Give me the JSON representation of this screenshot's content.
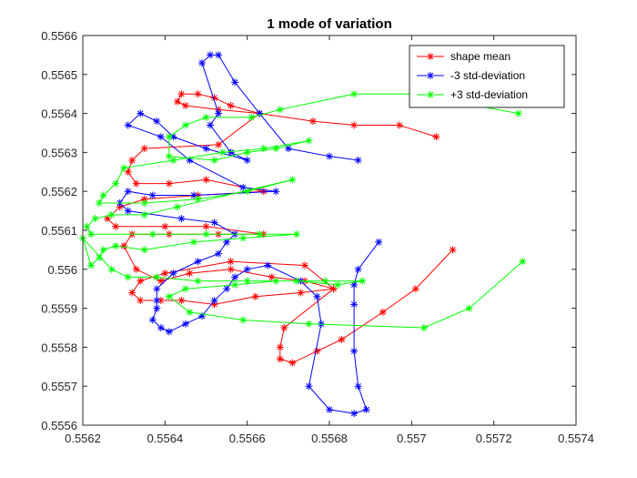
{
  "chart_data": {
    "type": "line",
    "title": "1 mode of variation",
    "xlabel": "",
    "ylabel": "",
    "xlim": [
      0.5562,
      0.5574
    ],
    "ylim": [
      0.5556,
      0.5566
    ],
    "xticks": [
      "0.5562",
      "0.5564",
      "0.5566",
      "0.5568",
      "0.557",
      "0.5572",
      "0.5574"
    ],
    "yticks": [
      "0.5556",
      "0.5557",
      "0.5558",
      "0.5559",
      "0.556",
      "0.5561",
      "0.5562",
      "0.5563",
      "0.5564",
      "0.5565",
      "0.5566"
    ],
    "grid": false,
    "legend": "top-right",
    "marker": "*",
    "series": [
      {
        "name": "shape mean",
        "color": "#ff0000",
        "points": [
          [
            0.55706,
            0.55634
          ],
          [
            0.55697,
            0.55637
          ],
          [
            0.55686,
            0.55637
          ],
          [
            0.55676,
            0.55638
          ],
          [
            0.55663,
            0.5564
          ],
          [
            0.55656,
            0.55642
          ],
          [
            0.55652,
            0.55644
          ],
          [
            0.55648,
            0.55645
          ],
          [
            0.55644,
            0.55645
          ],
          [
            0.55643,
            0.55643
          ],
          [
            0.55645,
            0.55642
          ],
          [
            0.55653,
            0.55641
          ],
          [
            0.55663,
            0.5564
          ],
          [
            0.55653,
            0.55632
          ],
          [
            0.55635,
            0.55631
          ],
          [
            0.55632,
            0.55628
          ],
          [
            0.55631,
            0.55625
          ],
          [
            0.55633,
            0.55622
          ],
          [
            0.55641,
            0.55622
          ],
          [
            0.5565,
            0.55623
          ],
          [
            0.55664,
            0.5562
          ],
          [
            0.55648,
            0.55619
          ],
          [
            0.55635,
            0.55618
          ],
          [
            0.55629,
            0.55616
          ],
          [
            0.55626,
            0.55613
          ],
          [
            0.55628,
            0.55611
          ],
          [
            0.5564,
            0.55611
          ],
          [
            0.5565,
            0.55611
          ],
          [
            0.55664,
            0.55609
          ],
          [
            0.55653,
            0.55609
          ],
          [
            0.55641,
            0.55609
          ],
          [
            0.55632,
            0.55609
          ],
          [
            0.5563,
            0.55606
          ],
          [
            0.55633,
            0.556
          ],
          [
            0.55639,
            0.55597
          ],
          [
            0.55646,
            0.55599
          ],
          [
            0.55656,
            0.556
          ],
          [
            0.55666,
            0.55598
          ],
          [
            0.55674,
            0.55597
          ],
          [
            0.55681,
            0.55595
          ],
          [
            0.55673,
            0.55594
          ],
          [
            0.55662,
            0.55593
          ],
          [
            0.55652,
            0.55591
          ],
          [
            0.55644,
            0.55592
          ],
          [
            0.55639,
            0.55592
          ],
          [
            0.55634,
            0.55592
          ],
          [
            0.55632,
            0.55594
          ],
          [
            0.55634,
            0.55597
          ],
          [
            0.5564,
            0.55599
          ],
          [
            0.55656,
            0.55602
          ],
          [
            0.55674,
            0.55601
          ],
          [
            0.55681,
            0.55595
          ],
          [
            0.55669,
            0.55585
          ],
          [
            0.55668,
            0.5558
          ],
          [
            0.55668,
            0.55577
          ],
          [
            0.55671,
            0.55576
          ],
          [
            0.55677,
            0.55579
          ],
          [
            0.55683,
            0.55582
          ],
          [
            0.55693,
            0.55589
          ],
          [
            0.55701,
            0.55595
          ],
          [
            0.5571,
            0.55605
          ]
        ]
      },
      {
        "name": "-3 std-deviation",
        "color": "#0000ff",
        "points": [
          [
            0.55687,
            0.55628
          ],
          [
            0.5568,
            0.55629
          ],
          [
            0.5567,
            0.55631
          ],
          [
            0.55663,
            0.5564
          ],
          [
            0.55657,
            0.55648
          ],
          [
            0.55653,
            0.55655
          ],
          [
            0.55651,
            0.55655
          ],
          [
            0.55649,
            0.55653
          ],
          [
            0.55653,
            0.5564
          ],
          [
            0.55651,
            0.55637
          ],
          [
            0.55656,
            0.5563
          ],
          [
            0.5566,
            0.55628
          ],
          [
            0.5565,
            0.55631
          ],
          [
            0.55642,
            0.55634
          ],
          [
            0.55638,
            0.55638
          ],
          [
            0.55634,
            0.5564
          ],
          [
            0.55631,
            0.55637
          ],
          [
            0.55639,
            0.55634
          ],
          [
            0.55646,
            0.55628
          ],
          [
            0.55659,
            0.55621
          ],
          [
            0.55667,
            0.5562
          ],
          [
            0.55647,
            0.55619
          ],
          [
            0.55637,
            0.55619
          ],
          [
            0.55631,
            0.5562
          ],
          [
            0.55629,
            0.55617
          ],
          [
            0.55631,
            0.55615
          ],
          [
            0.55644,
            0.55613
          ],
          [
            0.55652,
            0.55612
          ],
          [
            0.55657,
            0.55609
          ],
          [
            0.55655,
            0.55607
          ],
          [
            0.55653,
            0.55604
          ],
          [
            0.55648,
            0.55602
          ],
          [
            0.55642,
            0.55599
          ],
          [
            0.55638,
            0.55595
          ],
          [
            0.55638,
            0.55592
          ],
          [
            0.55638,
            0.5559
          ],
          [
            0.55637,
            0.55587
          ],
          [
            0.55639,
            0.55585
          ],
          [
            0.55641,
            0.55584
          ],
          [
            0.55645,
            0.55586
          ],
          [
            0.55649,
            0.55588
          ],
          [
            0.55652,
            0.55592
          ],
          [
            0.55655,
            0.55595
          ],
          [
            0.55657,
            0.55598
          ],
          [
            0.5566,
            0.556
          ],
          [
            0.55665,
            0.55601
          ],
          [
            0.55673,
            0.55597
          ],
          [
            0.55677,
            0.55593
          ],
          [
            0.55678,
            0.55586
          ],
          [
            0.55675,
            0.5557
          ],
          [
            0.5568,
            0.55564
          ],
          [
            0.55686,
            0.55563
          ],
          [
            0.55689,
            0.55564
          ],
          [
            0.55687,
            0.5557
          ],
          [
            0.55686,
            0.55579
          ],
          [
            0.55686,
            0.55591
          ],
          [
            0.55686,
            0.55596
          ],
          [
            0.55687,
            0.556
          ],
          [
            0.55692,
            0.55607
          ]
        ]
      },
      {
        "name": "+3 std-deviation",
        "color": "#00ff00",
        "points": [
          [
            0.55726,
            0.5564
          ],
          [
            0.557,
            0.55645
          ],
          [
            0.55686,
            0.55645
          ],
          [
            0.55668,
            0.55641
          ],
          [
            0.55661,
            0.55639
          ],
          [
            0.5565,
            0.55639
          ],
          [
            0.55645,
            0.55637
          ],
          [
            0.55641,
            0.55634
          ],
          [
            0.55641,
            0.55629
          ],
          [
            0.55652,
            0.55628
          ],
          [
            0.5566,
            0.5563
          ],
          [
            0.55667,
            0.55631
          ],
          [
            0.55675,
            0.55633
          ],
          [
            0.55664,
            0.55631
          ],
          [
            0.55654,
            0.5563
          ],
          [
            0.55642,
            0.55628
          ],
          [
            0.5563,
            0.55626
          ],
          [
            0.55628,
            0.55622
          ],
          [
            0.55625,
            0.55619
          ],
          [
            0.55624,
            0.55617
          ],
          [
            0.55635,
            0.55617
          ],
          [
            0.55648,
            0.55618
          ],
          [
            0.5566,
            0.5562
          ],
          [
            0.55671,
            0.55623
          ],
          [
            0.55643,
            0.55616
          ],
          [
            0.55635,
            0.55614
          ],
          [
            0.55627,
            0.55614
          ],
          [
            0.55623,
            0.55613
          ],
          [
            0.55621,
            0.55611
          ],
          [
            0.55622,
            0.55609
          ],
          [
            0.55637,
            0.55609
          ],
          [
            0.5565,
            0.55609
          ],
          [
            0.55663,
            0.55609
          ],
          [
            0.55672,
            0.55609
          ],
          [
            0.55659,
            0.55608
          ],
          [
            0.55647,
            0.55607
          ],
          [
            0.55635,
            0.55605
          ],
          [
            0.55628,
            0.55606
          ],
          [
            0.55625,
            0.55605
          ],
          [
            0.55624,
            0.55603
          ],
          [
            0.55622,
            0.55601
          ],
          [
            0.5562,
            0.55608
          ],
          [
            0.55627,
            0.556
          ],
          [
            0.55631,
            0.55598
          ],
          [
            0.55638,
            0.55598
          ],
          [
            0.55648,
            0.55597
          ],
          [
            0.5566,
            0.55597
          ],
          [
            0.55672,
            0.55597
          ],
          [
            0.55682,
            0.55596
          ],
          [
            0.55688,
            0.55597
          ],
          [
            0.55679,
            0.55597
          ],
          [
            0.55667,
            0.55597
          ],
          [
            0.55657,
            0.55596
          ],
          [
            0.55645,
            0.55595
          ],
          [
            0.55641,
            0.55593
          ],
          [
            0.55646,
            0.55589
          ],
          [
            0.55659,
            0.55587
          ],
          [
            0.55675,
            0.55586
          ],
          [
            0.55703,
            0.55585
          ],
          [
            0.55714,
            0.5559
          ],
          [
            0.55727,
            0.55602
          ]
        ]
      }
    ]
  }
}
